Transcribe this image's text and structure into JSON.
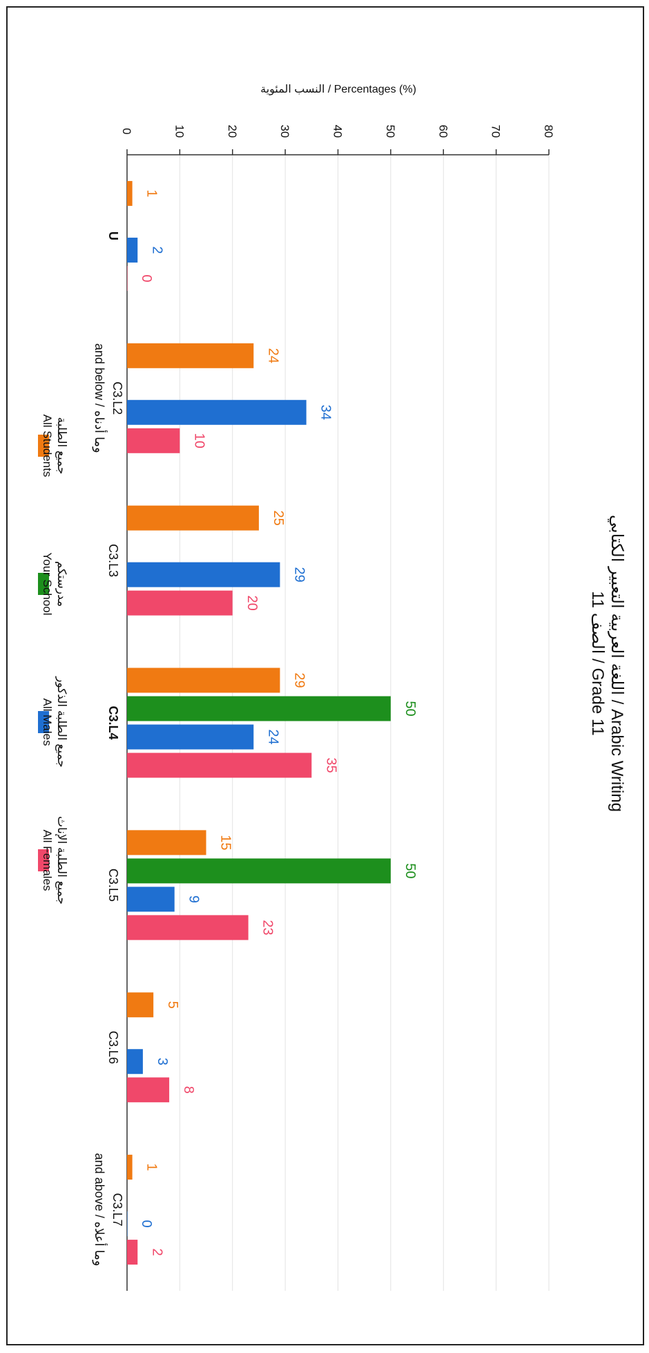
{
  "chart_data": {
    "type": "bar",
    "orientation": "horizontal-bars (figure rotated 90° clockwise)",
    "title_line1": "اللغة العربية التعبير الكتابي / Arabic Writing",
    "title_line2": "الصف 11 / Grade 11",
    "value_axis_label": "النسب المئوية / Percentages (%)",
    "ylim": [
      0,
      80
    ],
    "ticks": [
      "0",
      "10",
      "20",
      "30",
      "40",
      "50",
      "60",
      "70",
      "80"
    ],
    "grid": true,
    "legend_position": "bottom",
    "categories": [
      {
        "line1": "U",
        "line2": "",
        "bold": true
      },
      {
        "line1": "C3.L2",
        "line2": "and below / وما أدناه",
        "bold": false
      },
      {
        "line1": "C3.L3",
        "line2": "",
        "bold": false
      },
      {
        "line1": "C3.L4",
        "line2": "",
        "bold": true
      },
      {
        "line1": "C3.L5",
        "line2": "",
        "bold": false
      },
      {
        "line1": "C3.L6",
        "line2": "",
        "bold": false
      },
      {
        "line1": "C3.L7",
        "line2": "and above / وما أعلاه",
        "bold": false
      }
    ],
    "series": [
      {
        "name": "All Students",
        "name_ar": "جميع الطلبة",
        "color": "#f07a12",
        "label_color": "#f07a12",
        "values": [
          1,
          24,
          25,
          29,
          15,
          5,
          1
        ]
      },
      {
        "name": "Your School",
        "name_ar": "مدرستكم",
        "color": "#1d8f1d",
        "label_color": "#1d8f1d",
        "values": [
          null,
          null,
          null,
          50,
          50,
          null,
          null
        ]
      },
      {
        "name": "All Males",
        "name_ar": "جميع الطلبة الذكور",
        "color": "#1f6fd1",
        "label_color": "#1f6fd1",
        "values": [
          2,
          34,
          29,
          24,
          9,
          3,
          0
        ]
      },
      {
        "name": "All Females",
        "name_ar": "جميع الطلبة الإناث",
        "color": "#f0486a",
        "label_color": "#f0486a",
        "values": [
          0,
          10,
          20,
          35,
          23,
          8,
          2
        ]
      }
    ]
  }
}
